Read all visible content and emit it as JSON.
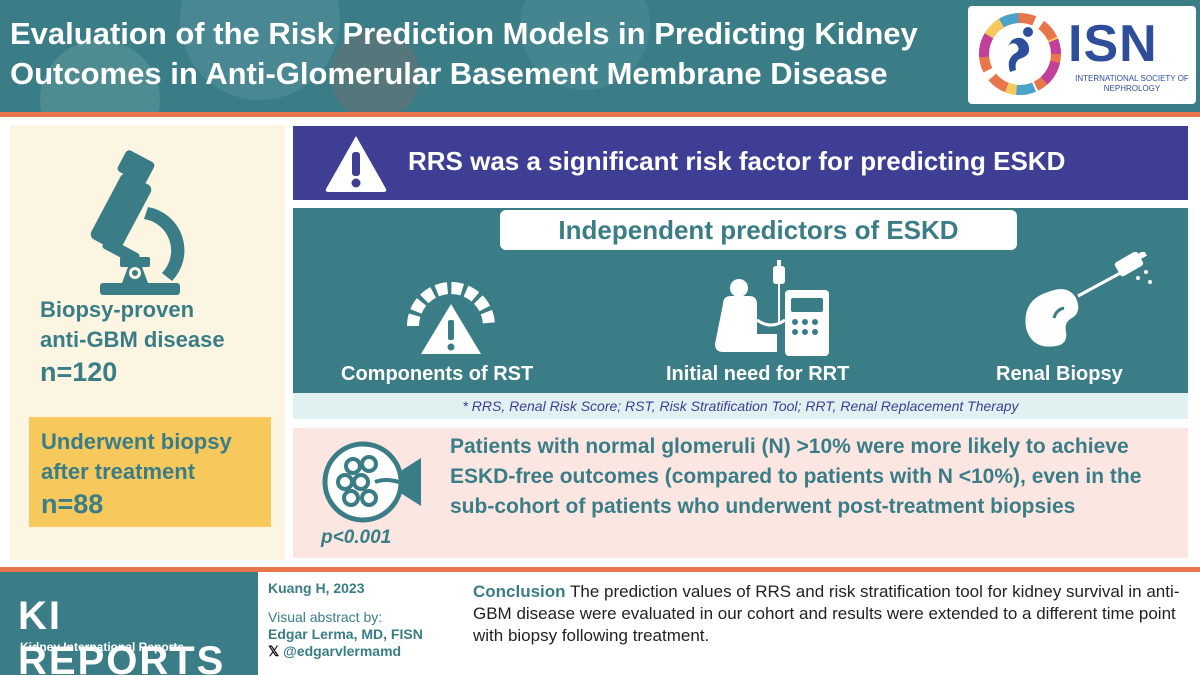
{
  "header": {
    "title": "Evaluation of the Risk Prediction Models in Predicting Kidney Outcomes in Anti-Glomerular Basement Membrane Disease",
    "logo": {
      "name": "ISN",
      "subtitle": "INTERNATIONAL SOCIETY OF NEPHROLOGY"
    }
  },
  "left": {
    "cohort_label": "Biopsy-proven anti-GBM disease",
    "cohort_n": "n=120",
    "subgroup_label": "Underwent biopsy after treatment",
    "subgroup_n": "n=88"
  },
  "banner": {
    "text": "RRS was a significant risk factor for predicting ESKD"
  },
  "predictors": {
    "heading": "Independent predictors of ESKD",
    "items": [
      {
        "label": "Components of RST",
        "icon": "gauge-warning-icon"
      },
      {
        "label": "Initial need for RRT",
        "icon": "dialysis-icon"
      },
      {
        "label": "Renal Biopsy",
        "icon": "kidney-biopsy-icon"
      }
    ],
    "footnote": "* RRS, Renal Risk Score; RST, Risk Stratification Tool; RRT, Renal Replacement Therapy"
  },
  "finding": {
    "p_value": "p<0.001",
    "text": "Patients with normal glomeruli (N) >10% were more likely to achieve ESKD-free outcomes (compared to patients with N <10%), even in the sub-cohort of patients who underwent post-treatment biopsies"
  },
  "footer": {
    "journal": "KI REPORTS",
    "journal_sub": "Kidney International Reports",
    "citation": "Kuang H, 2023",
    "visual_label": "Visual abstract by:",
    "author": "Edgar Lerma, MD, FISN",
    "handle": "@edgarvlermamd",
    "conclusion_label": "Conclusion",
    "conclusion_text": " The prediction values of RRS and risk stratification tool for kidney survival in anti-GBM disease were evaluated in our cohort and results were extended to a different time point with biopsy following treatment."
  },
  "colors": {
    "teal": "#3a7d87",
    "navy": "#3d3e94",
    "orange": "#e8764a",
    "yellow": "#f7c85c",
    "cream": "#fbf5e2",
    "pink": "#fbe6e2"
  }
}
